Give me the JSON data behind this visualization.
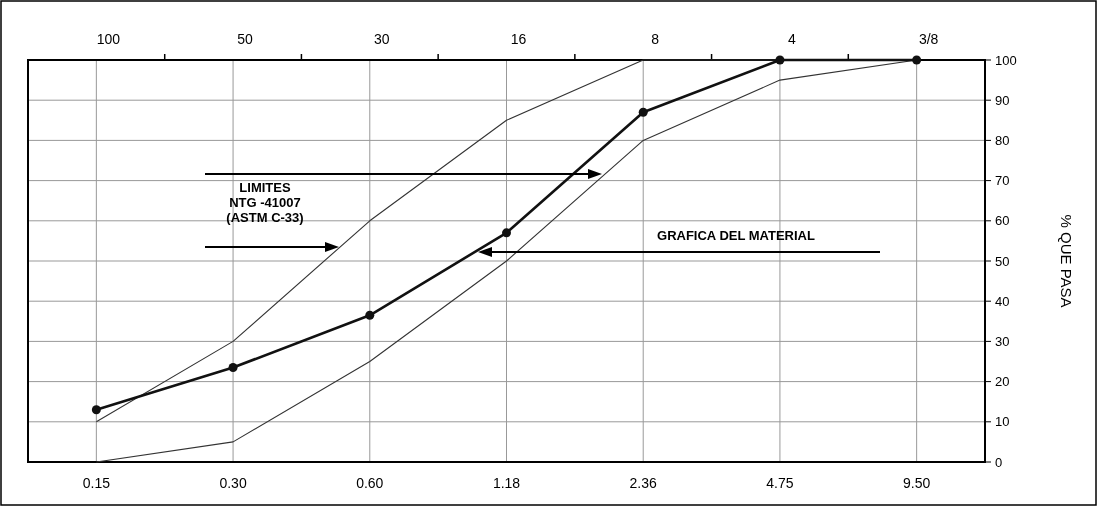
{
  "chart_data": {
    "type": "line",
    "ylabel": "% QUE PASA",
    "categories": [
      "0.15",
      "0.30",
      "0.60",
      "1.18",
      "2.36",
      "4.75",
      "9.50"
    ],
    "series": [
      {
        "color": "#333333",
        "values": [
          0,
          5,
          25,
          50,
          80,
          95,
          100
        ]
      },
      {
        "color": "#333333",
        "values": [
          10,
          30,
          60,
          85,
          100,
          100,
          100
        ]
      },
      {
        "color": "#111111",
        "values": [
          13,
          23.5,
          36.5,
          57,
          87,
          100,
          100
        ],
        "marker": "circle"
      }
    ],
    "ylim": [
      0,
      100
    ],
    "yticks": [
      0,
      10,
      20,
      30,
      40,
      50,
      60,
      70,
      80,
      90,
      100
    ],
    "grid": true,
    "marker": "none",
    "annotations": [
      "100",
      "50",
      "30",
      "16",
      "8",
      "4",
      "3/8",
      "LIMITES\nNTG -41007\n(ASTM C-33)",
      "GRAFICA DEL MATERIAL"
    ]
  }
}
